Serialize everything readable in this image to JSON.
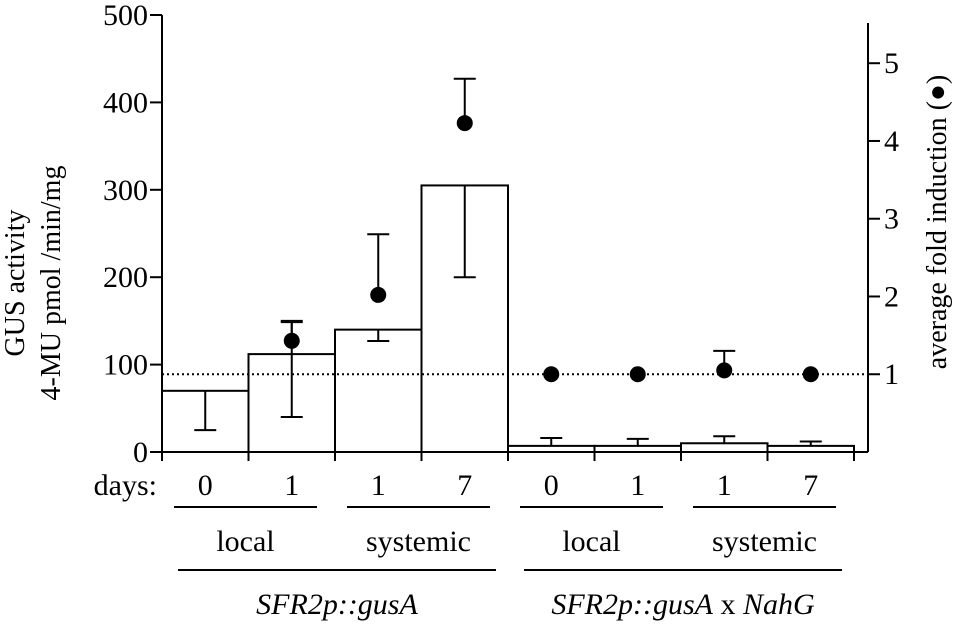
{
  "chart_data": {
    "type": "bar",
    "title": "",
    "ylabel_line1": "GUS activity",
    "ylabel_line2": "4-MU pmol /min/mg",
    "y2label": "average fold induction (●)",
    "ylim": [
      0,
      500
    ],
    "y_ticks": [
      "0",
      "100",
      "200",
      "300",
      "400",
      "500"
    ],
    "y_tick_values": [
      0,
      100,
      200,
      300,
      400,
      500
    ],
    "y2lim": [
      0,
      5.62
    ],
    "y2_ticks": [
      "1",
      "2",
      "3",
      "4",
      "5"
    ],
    "y2_tick_values": [
      1,
      2,
      3,
      4,
      5
    ],
    "reference_line_y2": 1,
    "days_label": "days:",
    "categories": [
      "0",
      "1",
      "1",
      "7",
      "0",
      "1",
      "1",
      "7"
    ],
    "bars": {
      "values": [
        70,
        112,
        140,
        305,
        7,
        7,
        10,
        7
      ],
      "error_low": [
        25,
        40,
        127,
        200,
        7,
        7,
        10,
        7
      ],
      "error_high": [
        70,
        150,
        140,
        305,
        16,
        15,
        18,
        12
      ]
    },
    "fold_induction": {
      "values": [
        null,
        1.43,
        2.02,
        4.23,
        1.0,
        1.0,
        1.05,
        1.0
      ],
      "error_high": [
        null,
        1.67,
        2.8,
        4.8,
        1.0,
        1.0,
        1.3,
        1.0
      ]
    },
    "groups": [
      {
        "label": "local",
        "start": 0,
        "end": 1
      },
      {
        "label": "systemic",
        "start": 2,
        "end": 3
      },
      {
        "label": "local",
        "start": 4,
        "end": 5
      },
      {
        "label": "systemic",
        "start": 6,
        "end": 7
      }
    ],
    "supergroups": [
      {
        "start": 0,
        "end": 3,
        "parts": [
          {
            "text": "SFR2p::gusA",
            "italic": true
          }
        ]
      },
      {
        "start": 4,
        "end": 7,
        "parts": [
          {
            "text": "SFR2p::gusA",
            "italic": true
          },
          {
            "text": " x ",
            "italic": false
          },
          {
            "text": "NahG",
            "italic": true
          }
        ]
      }
    ],
    "grid": false,
    "legend": "none"
  }
}
